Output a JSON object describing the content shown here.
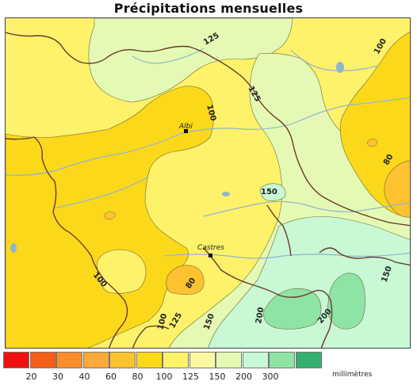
{
  "title": "Précipitations mensuelles",
  "legend": {
    "unit": "millimètres",
    "classes": [
      {
        "color": "#ee1111",
        "label": ""
      },
      {
        "color": "#f55f17",
        "label": "20"
      },
      {
        "color": "#fa8c2e",
        "label": "30"
      },
      {
        "color": "#fba93c",
        "label": "40"
      },
      {
        "color": "#fcc230",
        "label": "60"
      },
      {
        "color": "#fcd81a",
        "label": "80"
      },
      {
        "color": "#fef26a",
        "label": "100"
      },
      {
        "color": "#fbf9a0",
        "label": "125"
      },
      {
        "color": "#e4fab4",
        "label": "150"
      },
      {
        "color": "#c8f8d4",
        "label": "200"
      },
      {
        "color": "#8ee4a4",
        "label": "300"
      },
      {
        "color": "#36b06e",
        "label": ""
      }
    ]
  },
  "isolines": [
    {
      "id": "125-north",
      "label": "125"
    },
    {
      "id": "125-mid",
      "label": "125"
    },
    {
      "id": "100-ne",
      "label": "100"
    },
    {
      "id": "100-center",
      "label": "100"
    },
    {
      "id": "80-east",
      "label": "80"
    },
    {
      "id": "150-center",
      "label": "150"
    },
    {
      "id": "100-west",
      "label": "100"
    },
    {
      "id": "80-south",
      "label": "80"
    },
    {
      "id": "100-south",
      "label": "100"
    },
    {
      "id": "125-south",
      "label": "125"
    },
    {
      "id": "150-south",
      "label": "150"
    },
    {
      "id": "200-left",
      "label": "200"
    },
    {
      "id": "200-right",
      "label": "200"
    },
    {
      "id": "150-east",
      "label": "150"
    }
  ],
  "cities": [
    {
      "name": "Albi"
    },
    {
      "name": "Castres"
    }
  ]
}
